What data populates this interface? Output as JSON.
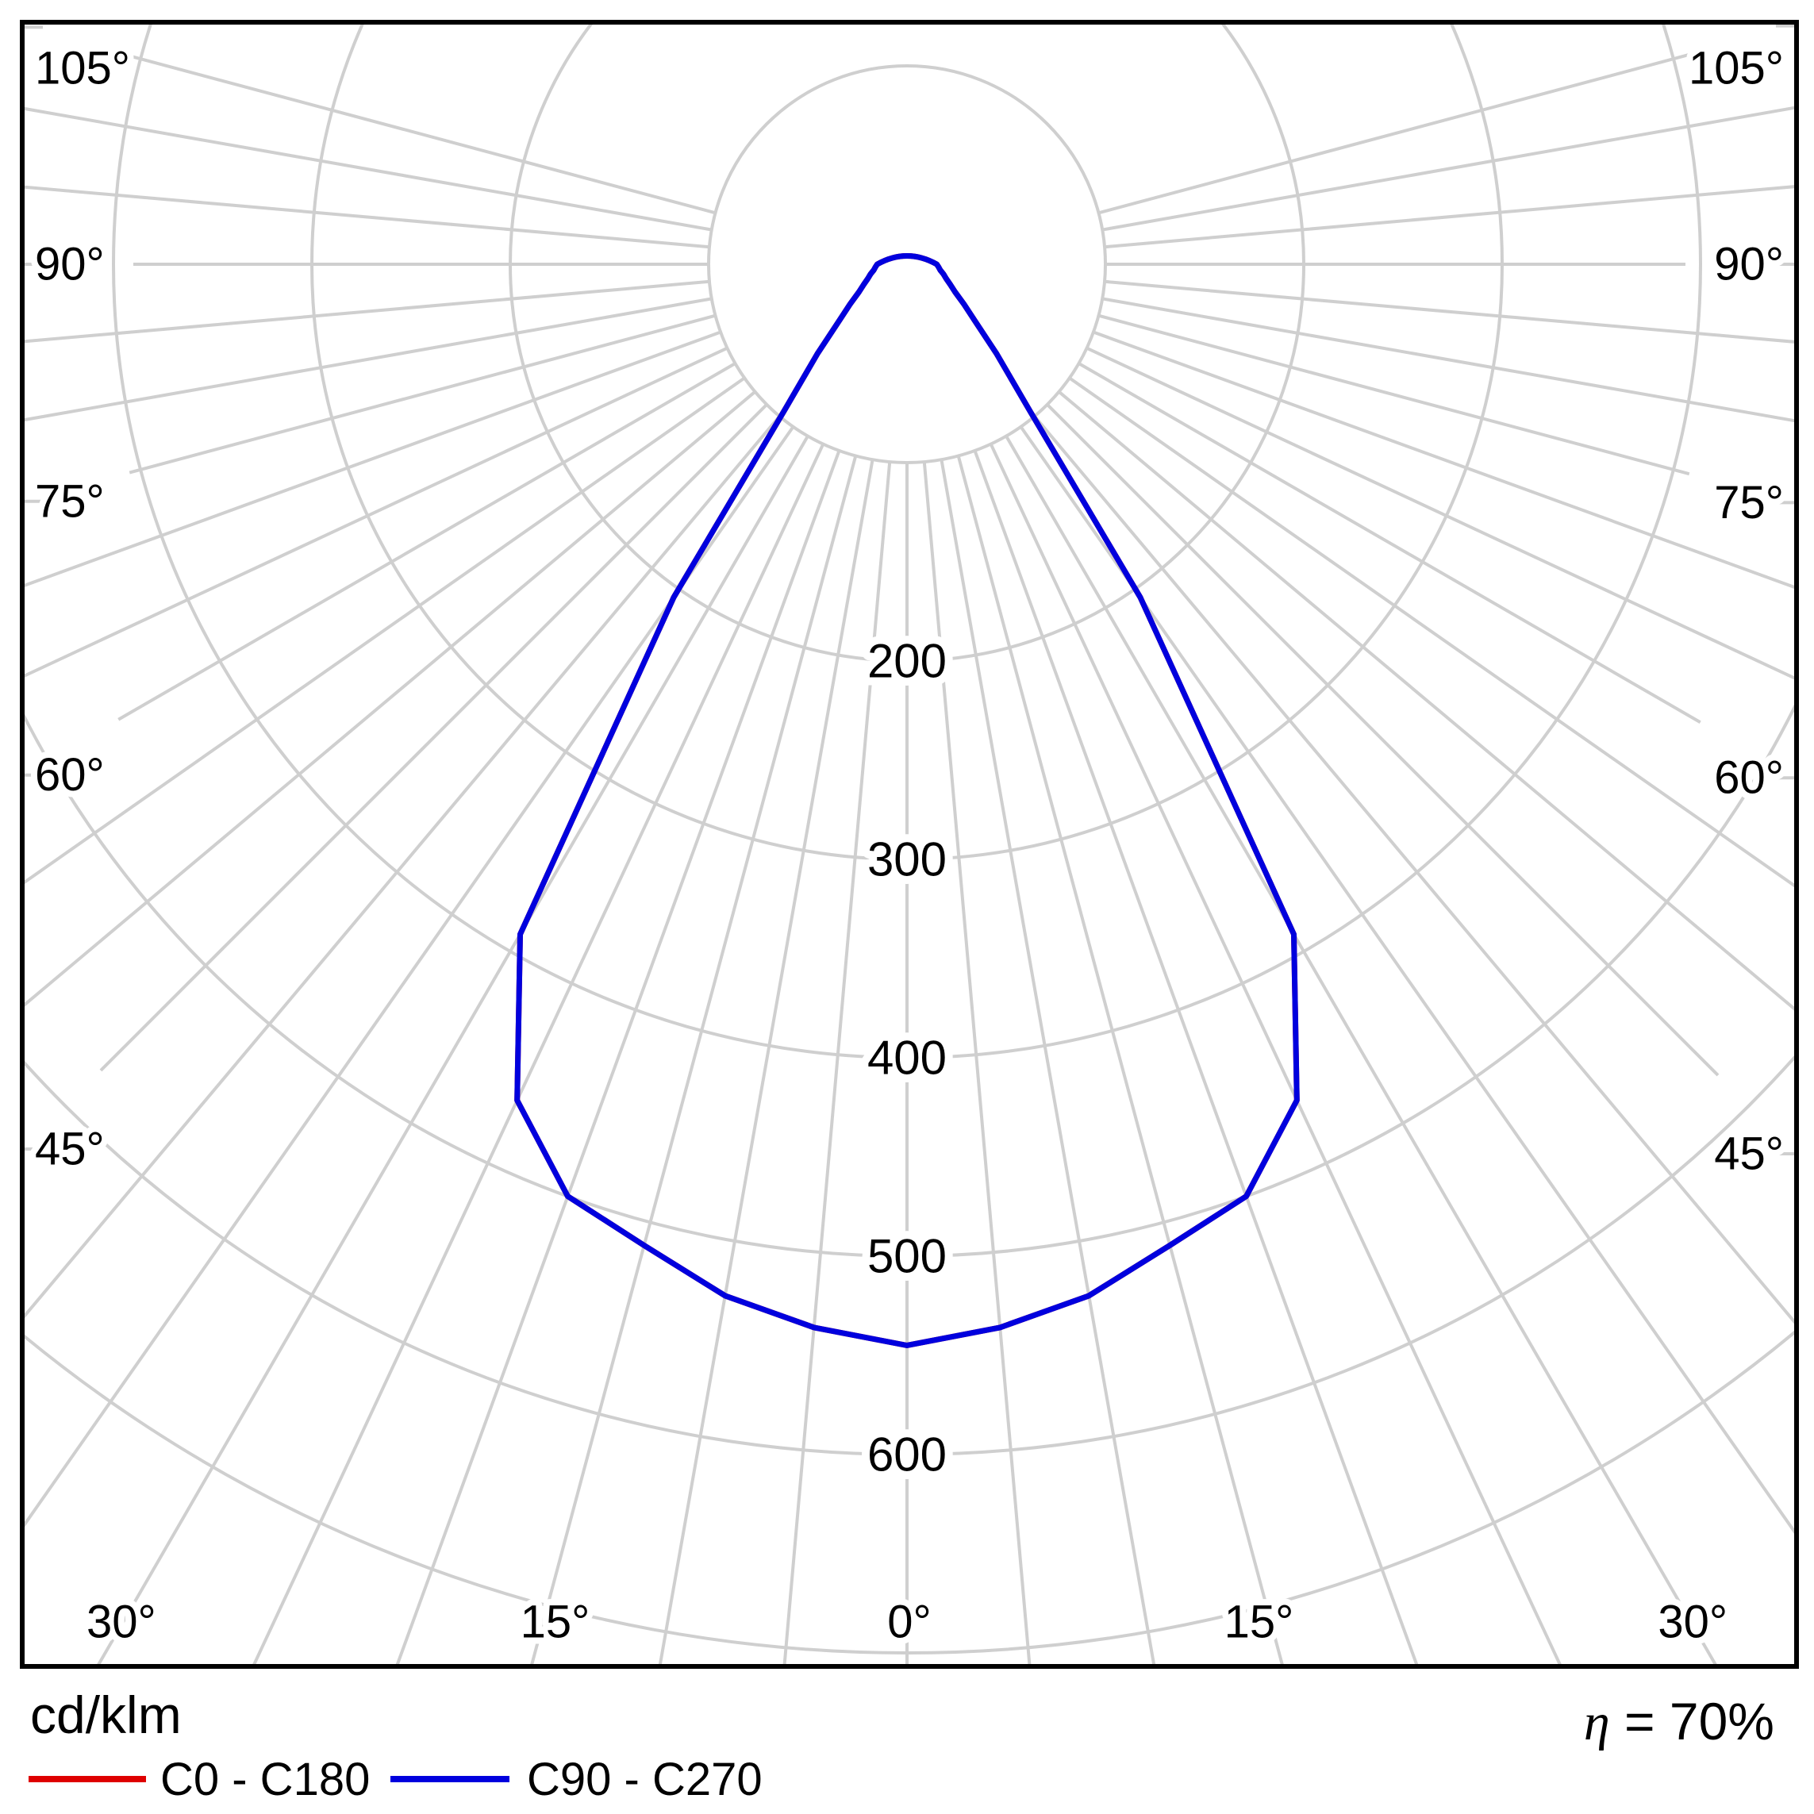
{
  "figure": {
    "background": "#ffffff",
    "frame_color": "#000000"
  },
  "footer": {
    "unit_label": "cd/klm",
    "eta_symbol": "η",
    "eta_value": " = 70%",
    "legend": [
      {
        "label": "C0 - C180",
        "color": "#de0000"
      },
      {
        "label": "C90 - C270",
        "color": "#0000de"
      }
    ]
  },
  "chart_data": {
    "type": "polar",
    "subtype": "luminous-intensity-distribution",
    "units": "cd/klm",
    "efficiency_percent": 70,
    "grid": {
      "on": true,
      "color": "#cfcfcf",
      "angle_step_deg": 5,
      "angle_max_deg": 105,
      "labeled_angles_deg": [
        0,
        15,
        30,
        45,
        60,
        75,
        90,
        105
      ],
      "angle_tick_labels": {
        "0": "0°",
        "15": "15°",
        "30": "30°",
        "45": "45°",
        "60": "60°",
        "75": "75°",
        "90": "90°",
        "105": "105°"
      },
      "radial_circles": [
        100,
        200,
        300,
        400,
        500,
        600,
        700
      ],
      "radial_labeled": [
        200,
        300,
        400,
        500,
        600
      ],
      "radial_tick_labels": {
        "200": "200",
        "300": "300",
        "400": "400",
        "500": "500",
        "600": "600"
      }
    },
    "legend_position": "bottom-left",
    "symmetric": true,
    "value_at_0deg": 545,
    "series": [
      {
        "name": "C0 - C180",
        "color": "#de0000",
        "note_visibility": "covered by C90 - C270 curve",
        "gamma_deg": [
          0,
          5,
          10,
          15,
          20,
          25,
          30,
          35,
          40,
          45,
          50,
          55,
          60,
          65,
          70,
          75,
          80,
          85,
          90
        ],
        "intensity_cd_per_klm": [
          545,
          538,
          528,
          512,
          500,
          465,
          390,
          205,
          96,
          64,
          45,
          35,
          28,
          24,
          21,
          19,
          17,
          16,
          15
        ]
      },
      {
        "name": "C90 - C270",
        "color": "#0000de",
        "gamma_deg": [
          0,
          5,
          10,
          15,
          20,
          25,
          30,
          35,
          40,
          45,
          50,
          55,
          60,
          65,
          70,
          75,
          80,
          85,
          90
        ],
        "intensity_cd_per_klm": [
          545,
          538,
          528,
          512,
          500,
          465,
          390,
          205,
          96,
          64,
          45,
          35,
          28,
          24,
          21,
          19,
          17,
          16,
          15
        ]
      }
    ]
  }
}
